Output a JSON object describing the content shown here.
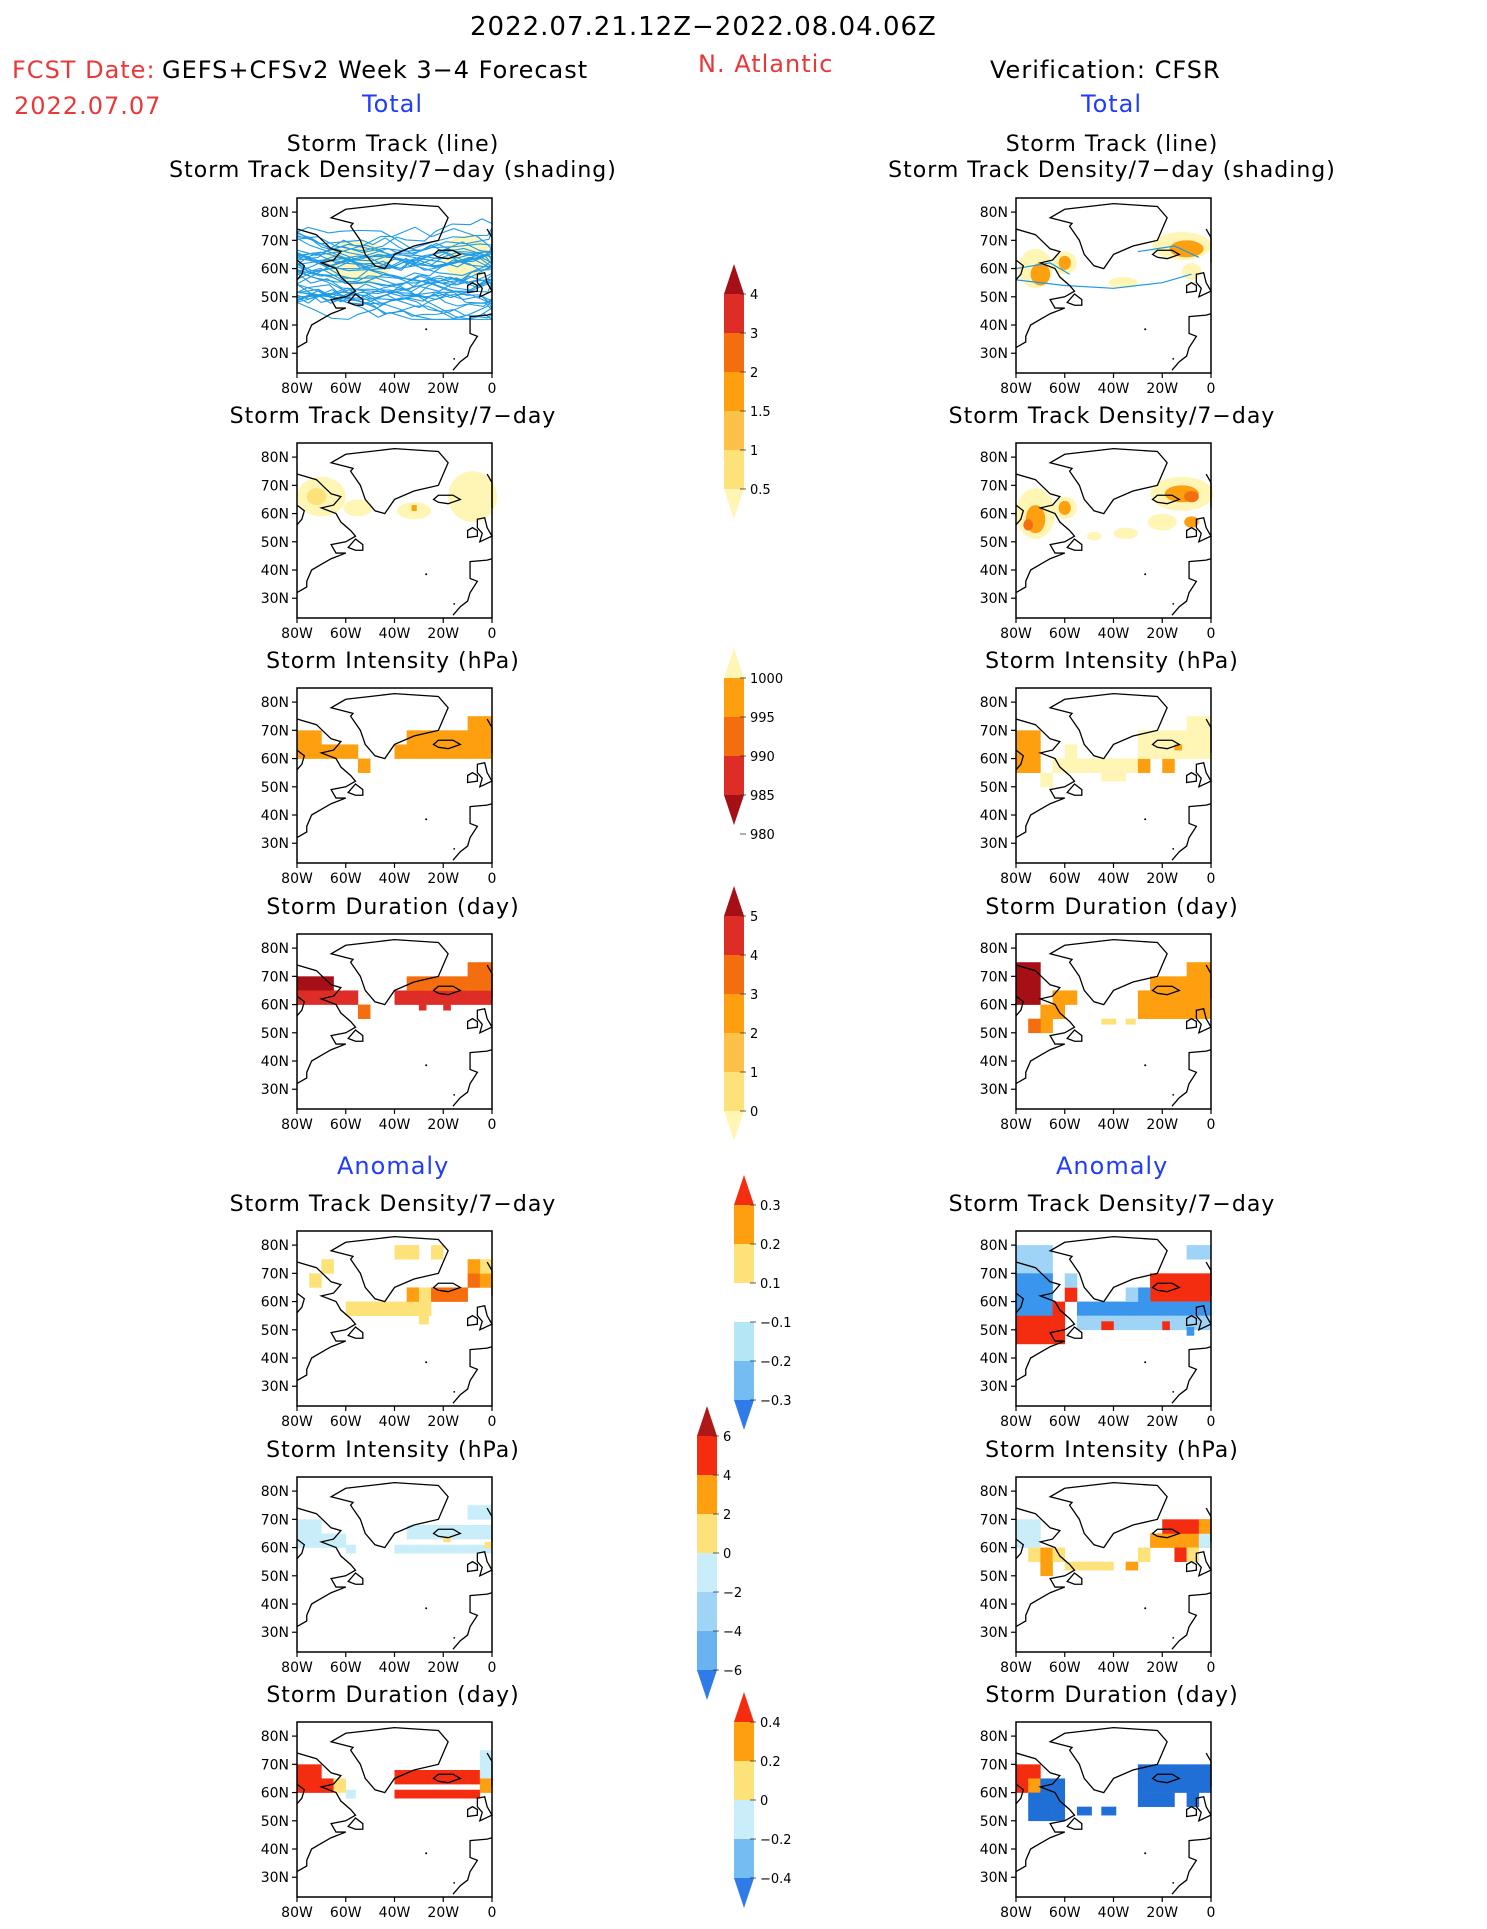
{
  "header": {
    "period": "2022.07.21.12Z−2022.08.04.06Z",
    "fcst_label": "FCST Date:",
    "model": "GEFS+CFSv2 Week 3−4 Forecast",
    "fcst_date": "2022.07.07",
    "region": "N. Atlantic",
    "verification": "Verification: CFSR",
    "total_left": "Total",
    "total_right": "Total",
    "anomaly_left": "Anomaly",
    "anomaly_right": "Anomaly"
  },
  "map_axes": {
    "lat_labels": [
      "80N",
      "70N",
      "60N",
      "50N",
      "40N",
      "30N"
    ],
    "lon_labels": [
      "80W",
      "60W",
      "40W",
      "20W",
      "0"
    ]
  },
  "panel_titles": {
    "track": [
      "Storm Track (line)",
      "Storm Track Density/7−day (shading)"
    ],
    "density": "Storm Track Density/7−day",
    "intensity": "Storm Intensity (hPa)",
    "duration": "Storm Duration (day)"
  },
  "colorbars": {
    "density": {
      "labels": [
        "4",
        "3",
        "2",
        "1.5",
        "1",
        "0.5"
      ],
      "colors": [
        "#a50f15",
        "#de2d26",
        "#f46d0e",
        "#fd9f0e",
        "#fdc14a",
        "#fde27a",
        "#fff5b5"
      ]
    },
    "intensity": {
      "labels": [
        "1000",
        "995",
        "990",
        "985",
        "980"
      ],
      "colors": [
        "#fff5b5",
        "#fd9f0e",
        "#f46d0e",
        "#de2d26",
        "#a50f15"
      ]
    },
    "duration": {
      "labels": [
        "5",
        "4",
        "3",
        "2",
        "1",
        "0"
      ],
      "colors": [
        "#a50f15",
        "#de2d26",
        "#f46d0e",
        "#fd9f0e",
        "#fdc14a",
        "#fde27a",
        "#fff5b5"
      ]
    },
    "density_anom": {
      "labels": [
        "0.3",
        "0.2",
        "0.1",
        "−0.1",
        "−0.2",
        "−0.3"
      ],
      "colors": [
        "#f42c10",
        "#fd9f0e",
        "#fde27a",
        "#ffffff",
        "#b4e6f5",
        "#74bdf2",
        "#2f7be8"
      ]
    },
    "intensity_anom": {
      "labels": [
        "6",
        "4",
        "2",
        "0",
        "−2",
        "−4",
        "−6"
      ],
      "colors": [
        "#b01818",
        "#f42c10",
        "#fd9f0e",
        "#fde27a",
        "#c9eefa",
        "#9fd4f7",
        "#6ab2f0",
        "#2f7be8"
      ]
    },
    "duration_anom": {
      "labels": [
        "0.4",
        "0.2",
        "0",
        "−0.2",
        "−0.4"
      ],
      "colors": [
        "#f42c10",
        "#fd9f0e",
        "#fde27a",
        "#c9eefa",
        "#74bdf2",
        "#2f7be8"
      ]
    }
  },
  "colors": {
    "track_line": "#1e9be6",
    "coast": "#000000",
    "light_yellow": "#fff5b5",
    "yellow": "#fde27a",
    "orange": "#fd9f0e",
    "dark_orange": "#f46d0e",
    "red": "#de2d26",
    "dark_red": "#a50f15",
    "light_blue": "#c9eefa",
    "blue": "#1f6fd6"
  }
}
